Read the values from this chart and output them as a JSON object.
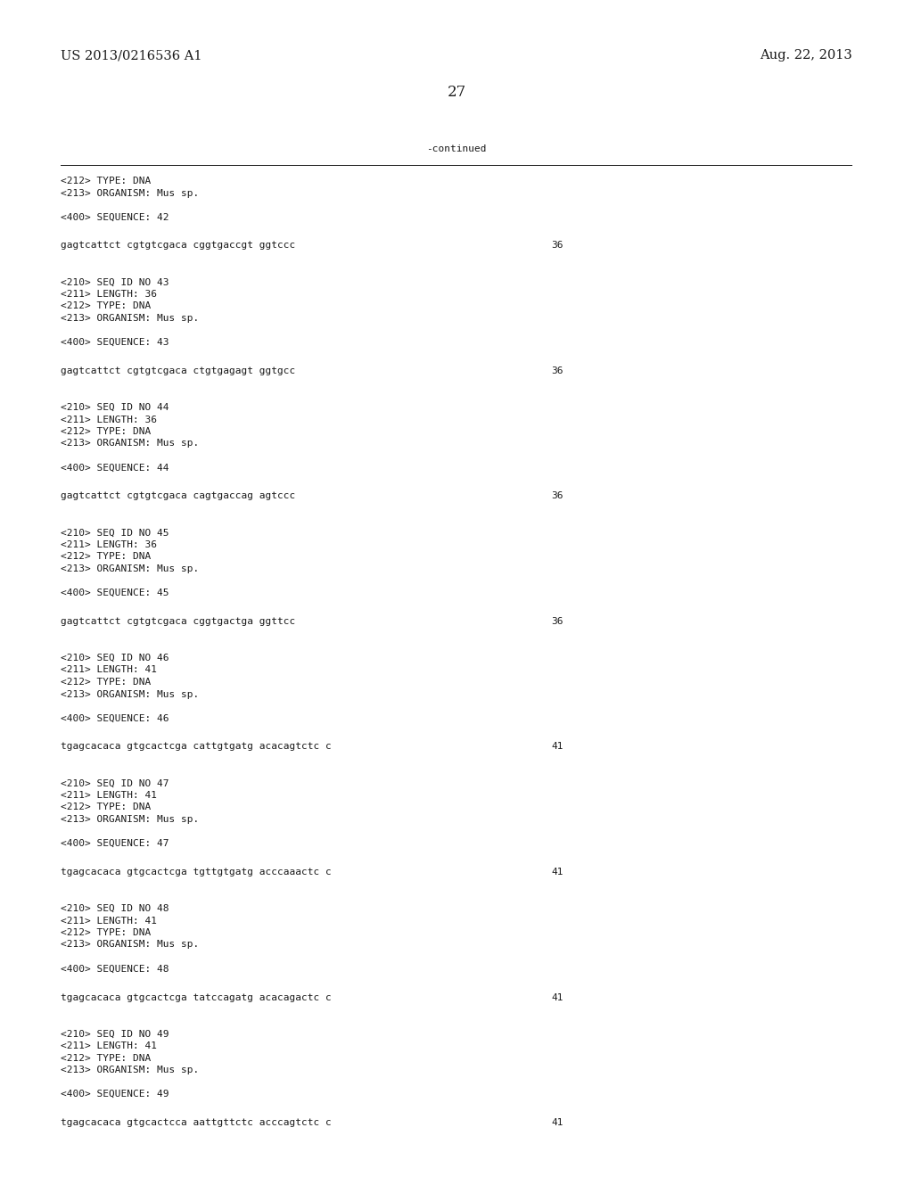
{
  "background_color": "#ffffff",
  "header_left": "US 2013/0216536 A1",
  "header_right": "Aug. 22, 2013",
  "page_number": "27",
  "continued_label": "-continued",
  "header_fontsize": 10.5,
  "page_num_fontsize": 12,
  "mono_fontsize": 8.0,
  "content_blocks": [
    {
      "lines": [
        {
          "text": "<212> TYPE: DNA",
          "type": "meta"
        },
        {
          "text": "<213> ORGANISM: Mus sp.",
          "type": "meta"
        }
      ]
    },
    {
      "lines": [
        {
          "text": "<400> SEQUENCE: 42",
          "type": "meta"
        }
      ]
    },
    {
      "lines": [
        {
          "text": "gagtcattct cgtgtcgaca cggtgaccgt ggtccc",
          "type": "seq",
          "num": "36"
        }
      ]
    },
    {
      "lines": [
        {
          "text": "<210> SEQ ID NO 43",
          "type": "meta"
        },
        {
          "text": "<211> LENGTH: 36",
          "type": "meta"
        },
        {
          "text": "<212> TYPE: DNA",
          "type": "meta"
        },
        {
          "text": "<213> ORGANISM: Mus sp.",
          "type": "meta"
        }
      ]
    },
    {
      "lines": [
        {
          "text": "<400> SEQUENCE: 43",
          "type": "meta"
        }
      ]
    },
    {
      "lines": [
        {
          "text": "gagtcattct cgtgtcgaca ctgtgagagt ggtgcc",
          "type": "seq",
          "num": "36"
        }
      ]
    },
    {
      "lines": [
        {
          "text": "<210> SEQ ID NO 44",
          "type": "meta"
        },
        {
          "text": "<211> LENGTH: 36",
          "type": "meta"
        },
        {
          "text": "<212> TYPE: DNA",
          "type": "meta"
        },
        {
          "text": "<213> ORGANISM: Mus sp.",
          "type": "meta"
        }
      ]
    },
    {
      "lines": [
        {
          "text": "<400> SEQUENCE: 44",
          "type": "meta"
        }
      ]
    },
    {
      "lines": [
        {
          "text": "gagtcattct cgtgtcgaca cagtgaccag agtccc",
          "type": "seq",
          "num": "36"
        }
      ]
    },
    {
      "lines": [
        {
          "text": "<210> SEQ ID NO 45",
          "type": "meta"
        },
        {
          "text": "<211> LENGTH: 36",
          "type": "meta"
        },
        {
          "text": "<212> TYPE: DNA",
          "type": "meta"
        },
        {
          "text": "<213> ORGANISM: Mus sp.",
          "type": "meta"
        }
      ]
    },
    {
      "lines": [
        {
          "text": "<400> SEQUENCE: 45",
          "type": "meta"
        }
      ]
    },
    {
      "lines": [
        {
          "text": "gagtcattct cgtgtcgaca cggtgactga ggttcc",
          "type": "seq",
          "num": "36"
        }
      ]
    },
    {
      "lines": [
        {
          "text": "<210> SEQ ID NO 46",
          "type": "meta"
        },
        {
          "text": "<211> LENGTH: 41",
          "type": "meta"
        },
        {
          "text": "<212> TYPE: DNA",
          "type": "meta"
        },
        {
          "text": "<213> ORGANISM: Mus sp.",
          "type": "meta"
        }
      ]
    },
    {
      "lines": [
        {
          "text": "<400> SEQUENCE: 46",
          "type": "meta"
        }
      ]
    },
    {
      "lines": [
        {
          "text": "tgagcacaca gtgcactcga cattgtgatg acacagtctc c",
          "type": "seq",
          "num": "41"
        }
      ]
    },
    {
      "lines": [
        {
          "text": "<210> SEQ ID NO 47",
          "type": "meta"
        },
        {
          "text": "<211> LENGTH: 41",
          "type": "meta"
        },
        {
          "text": "<212> TYPE: DNA",
          "type": "meta"
        },
        {
          "text": "<213> ORGANISM: Mus sp.",
          "type": "meta"
        }
      ]
    },
    {
      "lines": [
        {
          "text": "<400> SEQUENCE: 47",
          "type": "meta"
        }
      ]
    },
    {
      "lines": [
        {
          "text": "tgagcacaca gtgcactcga tgttgtgatg acccaaactc c",
          "type": "seq",
          "num": "41"
        }
      ]
    },
    {
      "lines": [
        {
          "text": "<210> SEQ ID NO 48",
          "type": "meta"
        },
        {
          "text": "<211> LENGTH: 41",
          "type": "meta"
        },
        {
          "text": "<212> TYPE: DNA",
          "type": "meta"
        },
        {
          "text": "<213> ORGANISM: Mus sp.",
          "type": "meta"
        }
      ]
    },
    {
      "lines": [
        {
          "text": "<400> SEQUENCE: 48",
          "type": "meta"
        }
      ]
    },
    {
      "lines": [
        {
          "text": "tgagcacaca gtgcactcga tatccagatg acacagactc c",
          "type": "seq",
          "num": "41"
        }
      ]
    },
    {
      "lines": [
        {
          "text": "<210> SEQ ID NO 49",
          "type": "meta"
        },
        {
          "text": "<211> LENGTH: 41",
          "type": "meta"
        },
        {
          "text": "<212> TYPE: DNA",
          "type": "meta"
        },
        {
          "text": "<213> ORGANISM: Mus sp.",
          "type": "meta"
        }
      ]
    },
    {
      "lines": [
        {
          "text": "<400> SEQUENCE: 49",
          "type": "meta"
        }
      ]
    },
    {
      "lines": [
        {
          "text": "tgagcacaca gtgcactcca aattgttctc acccagtctc c",
          "type": "seq",
          "num": "41"
        }
      ]
    }
  ]
}
